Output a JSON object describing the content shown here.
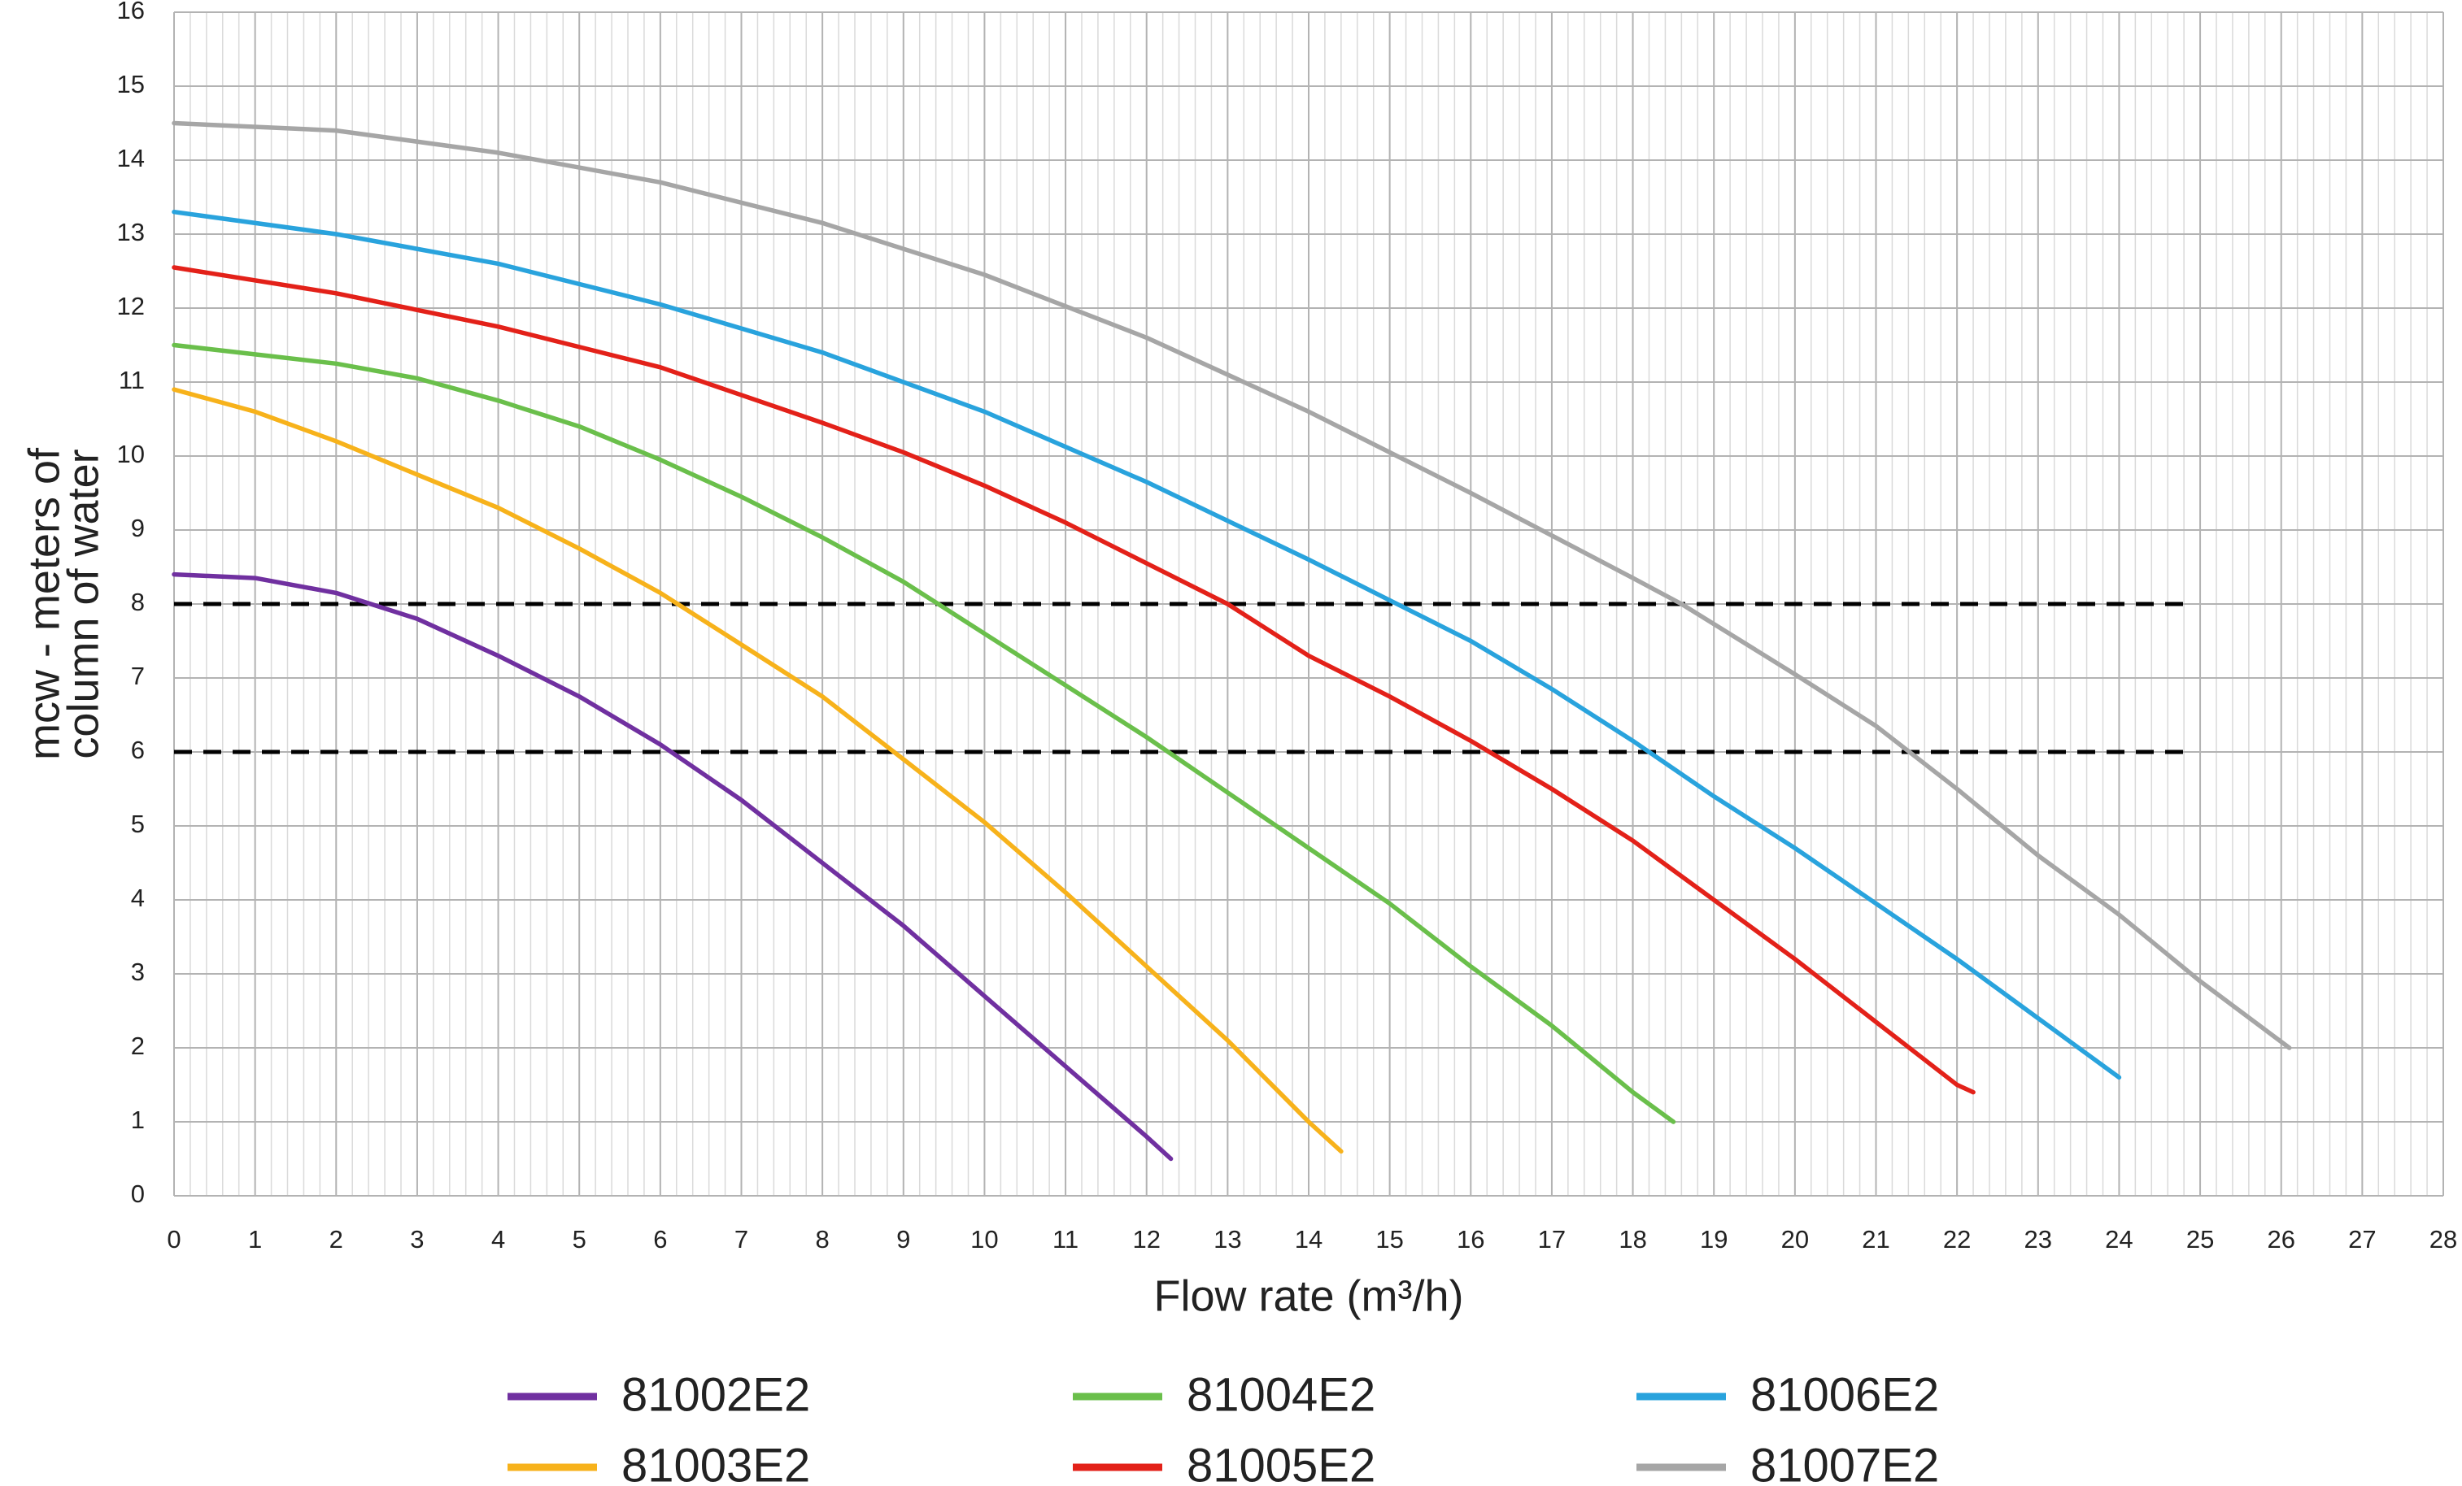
{
  "chart_data": {
    "type": "line",
    "x_label": "Flow rate (m³/h)",
    "y_label": [
      "mcw - meters of",
      "column of water"
    ],
    "xlim": [
      0,
      28
    ],
    "ylim": [
      0,
      16
    ],
    "xticks": [
      0,
      1,
      2,
      3,
      4,
      5,
      6,
      7,
      8,
      9,
      10,
      11,
      12,
      13,
      14,
      15,
      16,
      17,
      18,
      19,
      20,
      21,
      22,
      23,
      24,
      25,
      26,
      27,
      28
    ],
    "yticks": [
      0,
      1,
      2,
      3,
      4,
      5,
      6,
      7,
      8,
      9,
      10,
      11,
      12,
      13,
      14,
      15,
      16
    ],
    "grid": true,
    "x_minor_step": 0.2,
    "reference_lines": [
      {
        "y": 8,
        "x": [
          0,
          24.8
        ]
      },
      {
        "y": 6,
        "x": [
          0,
          24.8
        ]
      }
    ],
    "series": [
      {
        "name": "81002E2",
        "color": "#7030a0",
        "x": [
          0,
          1,
          2,
          3,
          4,
          5,
          6,
          7,
          8,
          9,
          10,
          11,
          12,
          12.3
        ],
        "values": [
          8.4,
          8.35,
          8.15,
          7.8,
          7.3,
          6.75,
          6.1,
          5.35,
          4.5,
          3.65,
          2.7,
          1.75,
          0.8,
          0.5
        ]
      },
      {
        "name": "81003E2",
        "color": "#f7b21b",
        "x": [
          0,
          1,
          2,
          3,
          4,
          5,
          6,
          7,
          8,
          9,
          10,
          11,
          12,
          13,
          14,
          14.4
        ],
        "values": [
          10.9,
          10.6,
          10.2,
          9.75,
          9.3,
          8.75,
          8.15,
          7.45,
          6.75,
          5.9,
          5.05,
          4.1,
          3.1,
          2.1,
          1.0,
          0.6
        ]
      },
      {
        "name": "81004E2",
        "color": "#6abf4b",
        "x": [
          0,
          2,
          3,
          4,
          5,
          6,
          7,
          8,
          9,
          10,
          11,
          12,
          13,
          14,
          15,
          16,
          17,
          18,
          18.5
        ],
        "values": [
          11.5,
          11.25,
          11.05,
          10.75,
          10.4,
          9.95,
          9.45,
          8.9,
          8.3,
          7.6,
          6.9,
          6.2,
          5.45,
          4.7,
          3.95,
          3.1,
          2.3,
          1.4,
          1.0
        ]
      },
      {
        "name": "81005E2",
        "color": "#e32119",
        "x": [
          0,
          2,
          4,
          6,
          8,
          9,
          10,
          11,
          12,
          13,
          14,
          15,
          16,
          17,
          18,
          19,
          20,
          21,
          22,
          22.2
        ],
        "values": [
          12.55,
          12.2,
          11.75,
          11.2,
          10.45,
          10.05,
          9.6,
          9.1,
          8.55,
          8.0,
          7.3,
          6.75,
          6.15,
          5.5,
          4.8,
          4.0,
          3.2,
          2.35,
          1.5,
          1.4
        ]
      },
      {
        "name": "81006E2",
        "color": "#29a3dd",
        "x": [
          0,
          2,
          4,
          6,
          8,
          10,
          12,
          14,
          15,
          16,
          17,
          18,
          19,
          20,
          21,
          22,
          23,
          24
        ],
        "values": [
          13.3,
          13.0,
          12.6,
          12.05,
          11.4,
          10.6,
          9.65,
          8.6,
          8.05,
          7.5,
          6.85,
          6.15,
          5.4,
          4.7,
          3.95,
          3.2,
          2.4,
          1.6
        ]
      },
      {
        "name": "81007E2",
        "color": "#a6a6a6",
        "x": [
          0,
          2,
          4,
          6,
          8,
          10,
          12,
          14,
          16,
          18,
          18.6,
          20,
          21,
          22,
          23,
          24,
          25,
          26.1
        ],
        "values": [
          14.5,
          14.4,
          14.1,
          13.7,
          13.15,
          12.45,
          11.6,
          10.6,
          9.5,
          8.35,
          8.0,
          7.05,
          6.35,
          5.5,
          4.6,
          3.8,
          2.9,
          2.0
        ]
      }
    ]
  }
}
